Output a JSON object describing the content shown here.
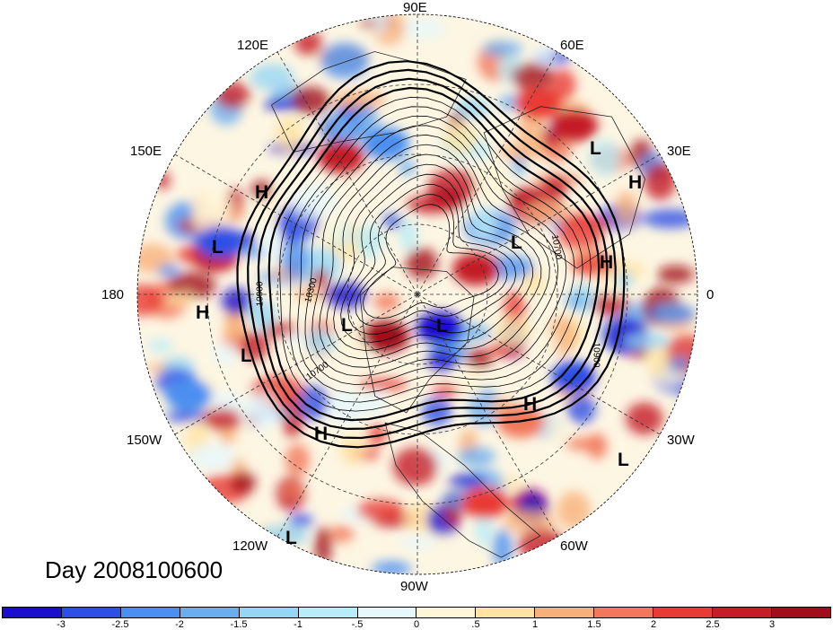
{
  "map": {
    "projection": "north-polar-stereographic",
    "longitude_labels": [
      "90E",
      "60E",
      "30E",
      "0",
      "30W",
      "60W",
      "90W",
      "120W",
      "150W",
      "180",
      "150E",
      "120E"
    ],
    "contour_labels": [
      "10300",
      "10700",
      "10900",
      "10900",
      "10700"
    ],
    "systems": [
      {
        "type": "H"
      },
      {
        "type": "H"
      },
      {
        "type": "H"
      },
      {
        "type": "H"
      },
      {
        "type": "H"
      },
      {
        "type": "H"
      },
      {
        "type": "L"
      },
      {
        "type": "L"
      },
      {
        "type": "L"
      },
      {
        "type": "L"
      },
      {
        "type": "L"
      },
      {
        "type": "L"
      },
      {
        "type": "L"
      },
      {
        "type": "L"
      },
      {
        "type": "L"
      }
    ],
    "day_label": "Day 2008100600"
  },
  "colorbar": {
    "colors": [
      "#1a0ecf",
      "#2e4fe6",
      "#4b8ff0",
      "#6aaef0",
      "#96d6f5",
      "#b8ecf8",
      "#e6f8fc",
      "#fff6d8",
      "#ffe3a3",
      "#f8b07a",
      "#f1785a",
      "#e83b35",
      "#c41d28",
      "#a20d1c"
    ],
    "ticks": [
      "-3",
      "-2.5",
      "-2",
      "-1.5",
      "-1",
      "-.5",
      "0",
      ".5",
      "1",
      "1.5",
      "2",
      "2.5",
      "3"
    ]
  }
}
